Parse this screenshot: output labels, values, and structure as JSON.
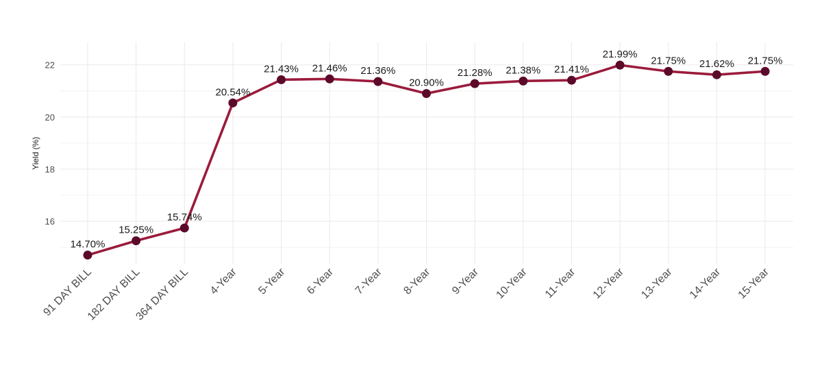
{
  "chart_data": {
    "type": "line",
    "title": "",
    "xlabel": "",
    "ylabel": "Yield (%)",
    "categories": [
      "91 DAY BILL",
      "182 DAY BILL",
      "364 DAY BILL",
      "4-Year",
      "5-Year",
      "6-Year",
      "7-Year",
      "8-Year",
      "9-Year",
      "10-Year",
      "11-Year",
      "12-Year",
      "13-Year",
      "14-Year",
      "15-Year"
    ],
    "series": [
      {
        "values": [
          14.7,
          15.25,
          15.74,
          20.54,
          21.43,
          21.46,
          21.36,
          20.9,
          21.28,
          21.38,
          21.41,
          21.99,
          21.75,
          21.62,
          21.75
        ],
        "labels": [
          "14.70%",
          "15.25%",
          "15.74%",
          "20.54%",
          "21.43%",
          "21.46%",
          "21.36%",
          "20.90%",
          "21.28%",
          "21.38%",
          "21.41%",
          "21.99%",
          "21.75%",
          "21.62%",
          "21.75%"
        ]
      }
    ],
    "ylim": [
      14.35,
      22.86
    ],
    "yticks": [
      16,
      18,
      20,
      22
    ],
    "grid": true,
    "legend": "none",
    "colors": {
      "line": "#9b1b3c",
      "point": "#5c0a2a",
      "grid": "#ebebeb"
    }
  }
}
